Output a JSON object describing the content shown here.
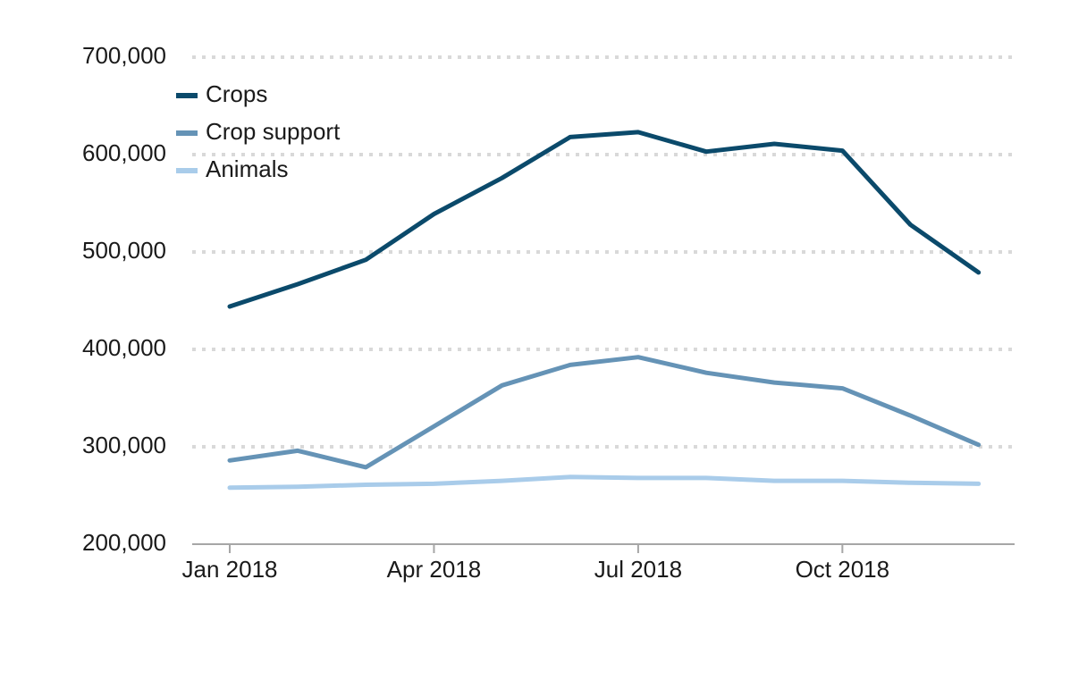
{
  "chart_data": {
    "type": "line",
    "title": "",
    "xlabel": "",
    "ylabel": "",
    "x": [
      "2018-01",
      "2018-02",
      "2018-03",
      "2018-04",
      "2018-05",
      "2018-06",
      "2018-07",
      "2018-08",
      "2018-09",
      "2018-10",
      "2018-11",
      "2018-12"
    ],
    "x_ticks": [
      {
        "x": "2018-01",
        "label": "Jan 2018"
      },
      {
        "x": "2018-04",
        "label": "Apr 2018"
      },
      {
        "x": "2018-07",
        "label": "Jul 2018"
      },
      {
        "x": "2018-10",
        "label": "Oct 2018"
      }
    ],
    "ylim": [
      200000,
      700000
    ],
    "y_ticks": [
      {
        "value": 700000,
        "label": "700,000"
      },
      {
        "value": 600000,
        "label": "600,000"
      },
      {
        "value": 500000,
        "label": "500,000"
      },
      {
        "value": 400000,
        "label": "400,000"
      },
      {
        "value": 300000,
        "label": "300,000"
      },
      {
        "value": 200000,
        "label": "200,000"
      }
    ],
    "grid": "horizontal dotted",
    "legend_position": "top-left",
    "series": [
      {
        "name": "Crops",
        "color": "#0b4a6b",
        "values": [
          444000,
          467000,
          492000,
          539000,
          576000,
          618000,
          623000,
          603000,
          611000,
          604000,
          528000,
          479000
        ]
      },
      {
        "name": "Crop support",
        "color": "#6593b6",
        "values": [
          286000,
          296000,
          279000,
          321000,
          363000,
          384000,
          392000,
          376000,
          366000,
          360000,
          332000,
          302000
        ]
      },
      {
        "name": "Animals",
        "color": "#a9ccea",
        "values": [
          258000,
          259000,
          261000,
          262000,
          265000,
          269000,
          268000,
          268000,
          265000,
          265000,
          263000,
          262000
        ]
      }
    ]
  }
}
